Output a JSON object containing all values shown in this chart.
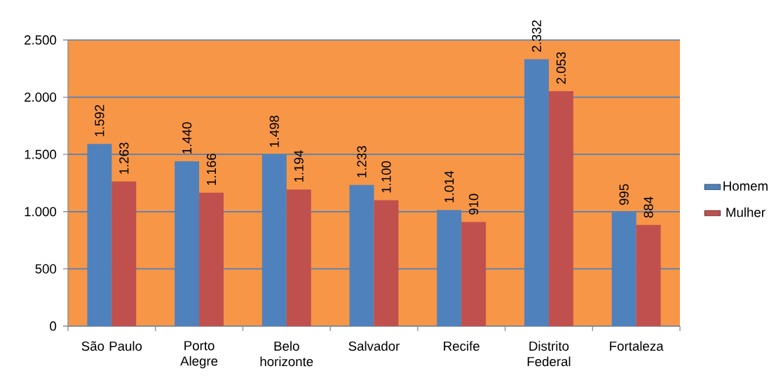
{
  "chart_data": {
    "type": "bar",
    "categories": [
      "São Paulo",
      "Porto Alegre",
      "Belo horizonte",
      "Salvador",
      "Recife",
      "Distrito Federal",
      "Fortaleza"
    ],
    "series": [
      {
        "name": "Homem",
        "color": "#4f81bd",
        "values": [
          1592,
          1440,
          1498,
          1233,
          1014,
          2332,
          995
        ],
        "value_labels": [
          "1.592",
          "1.440",
          "1.498",
          "1.233",
          "1.014",
          "2.332",
          "995"
        ]
      },
      {
        "name": "Mulher",
        "color": "#c0504d",
        "values": [
          1263,
          1166,
          1194,
          1100,
          910,
          2053,
          884
        ],
        "value_labels": [
          "1.263",
          "1.166",
          "1.194",
          "1.100",
          "910",
          "2.053",
          "884"
        ]
      }
    ],
    "ylim": [
      0,
      2500
    ],
    "yticks": [
      0,
      500,
      {
        "value": 1000,
        "label": "1.000"
      },
      {
        "value": 1500,
        "label": "1.500"
      },
      {
        "value": 2000,
        "label": "2.000"
      },
      {
        "value": 2500,
        "label": "2.500"
      }
    ],
    "grid": "y",
    "legend": "right"
  }
}
